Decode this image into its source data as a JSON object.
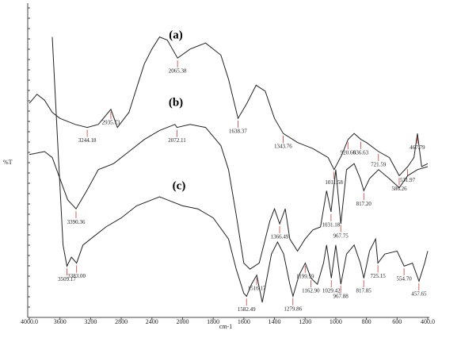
{
  "chart_data": {
    "type": "line",
    "x_label": "cm-1",
    "y_label": "%T",
    "x_axis_scale": "tick-spaced",
    "xlim": [
      4000,
      400
    ],
    "xticks": [
      {
        "value": 4000,
        "label": "4000.0"
      },
      3600,
      3200,
      2800,
      2400,
      2000,
      1800,
      1600,
      1400,
      1200,
      1000,
      800,
      600,
      {
        "value": 400,
        "label": "400.0"
      }
    ],
    "ylim": [
      0,
      100
    ],
    "series": [
      {
        "name": "(a)",
        "color": "#222222",
        "x": [
          4000,
          3900,
          3800,
          3700,
          3600,
          3400,
          3244,
          3100,
          2935,
          2850,
          2700,
          2600,
          2500,
          2400,
          2300,
          2200,
          2065,
          1950,
          1850,
          1750,
          1700,
          1638,
          1580,
          1520,
          1460,
          1400,
          1343,
          1250,
          1150,
          1050,
          1011,
          960,
          920,
          880,
          836,
          800,
          721,
          650,
          586,
          531,
          490,
          467,
          440,
          400
        ],
        "values": [
          71,
          74,
          72,
          68,
          66,
          64,
          63,
          64,
          69,
          63,
          68,
          76,
          84,
          89,
          93,
          92,
          86,
          89,
          91,
          87,
          79,
          66,
          71,
          77,
          75,
          66,
          61,
          58,
          56,
          53,
          49,
          54,
          59,
          61,
          59,
          58,
          55,
          53,
          47,
          50,
          53,
          61,
          50,
          51
        ],
        "peaks": [
          3244.18,
          2935.73,
          2065.38,
          1638.37,
          1343.76,
          1011.58,
          920.66,
          836.63,
          721.59,
          586.26,
          531.97,
          467.79
        ],
        "peak_labels": [
          "3244.18",
          "2935.73",
          "2065.38",
          "1638.37",
          "1343.76",
          "1011.58",
          "920.66",
          "836.63",
          "721.59",
          "586.26",
          "531.97",
          "467.79"
        ]
      },
      {
        "name": "(b)",
        "color": "#222222",
        "x": [
          4000,
          3800,
          3700,
          3600,
          3500,
          3390,
          3250,
          3100,
          2900,
          2700,
          2500,
          2300,
          2100,
          2072,
          1950,
          1850,
          1750,
          1700,
          1650,
          1600,
          1560,
          1500,
          1430,
          1400,
          1366,
          1330,
          1300,
          1250,
          1200,
          1150,
          1100,
          1060,
          1031,
          1000,
          967,
          930,
          880,
          840,
          817,
          780,
          721,
          650,
          586,
          531,
          467,
          400
        ],
        "values": [
          54,
          55,
          53,
          46,
          39,
          36,
          42,
          49,
          51,
          55,
          59,
          62,
          64,
          63,
          64,
          63,
          57,
          49,
          34,
          18,
          16,
          18,
          32,
          36,
          31,
          36,
          26,
          22,
          26,
          29,
          30,
          42,
          35,
          49,
          31,
          49,
          51,
          46,
          42,
          46,
          49,
          46,
          43,
          47,
          49,
          50
        ],
        "peaks": [
          3390.36,
          2072.11,
          1366.49,
          1031.18,
          967.75,
          817.2
        ],
        "peak_labels": [
          "3390.36",
          "2072.11",
          "1366.49",
          "1031.18",
          "967.75",
          "817.20"
        ]
      },
      {
        "name": "(c)",
        "color": "#222222",
        "x": [
          3700,
          3620,
          3560,
          3509,
          3450,
          3383,
          3300,
          3200,
          3000,
          2800,
          2600,
          2400,
          2300,
          2200,
          2000,
          1900,
          1800,
          1700,
          1650,
          1600,
          1582,
          1550,
          1516,
          1480,
          1450,
          1420,
          1380,
          1340,
          1300,
          1279,
          1240,
          1199,
          1162,
          1120,
          1080,
          1060,
          1029,
          1000,
          967,
          930,
          880,
          840,
          817,
          780,
          740,
          725,
          680,
          600,
          554,
          500,
          457,
          420,
          400
        ],
        "values": [
          93,
          53,
          24,
          17,
          20,
          18,
          24,
          26,
          30,
          33,
          37,
          39,
          40,
          39,
          37,
          36,
          33,
          26,
          16,
          8,
          7,
          11,
          14,
          5,
          13,
          21,
          25,
          21,
          11,
          7,
          14,
          18,
          13,
          11,
          18,
          24,
          13,
          24,
          11,
          21,
          24,
          18,
          13,
          22,
          26,
          18,
          21,
          22,
          17,
          18,
          12,
          18,
          22
        ],
        "peaks": [
          3509.17,
          3383.0,
          1582.49,
          1516.17,
          1279.86,
          1199.59,
          1162.9,
          1029.42,
          967.88,
          817.85,
          725.15,
          554.7,
          457.65
        ],
        "peak_labels": [
          "3509.17",
          "3383.00",
          "1582.49",
          "1516.17",
          "1279.86",
          "1199.59",
          "1162.90",
          "1029.42",
          "967.88",
          "817.85",
          "725.15",
          "554.70",
          "457.65"
        ]
      }
    ]
  }
}
